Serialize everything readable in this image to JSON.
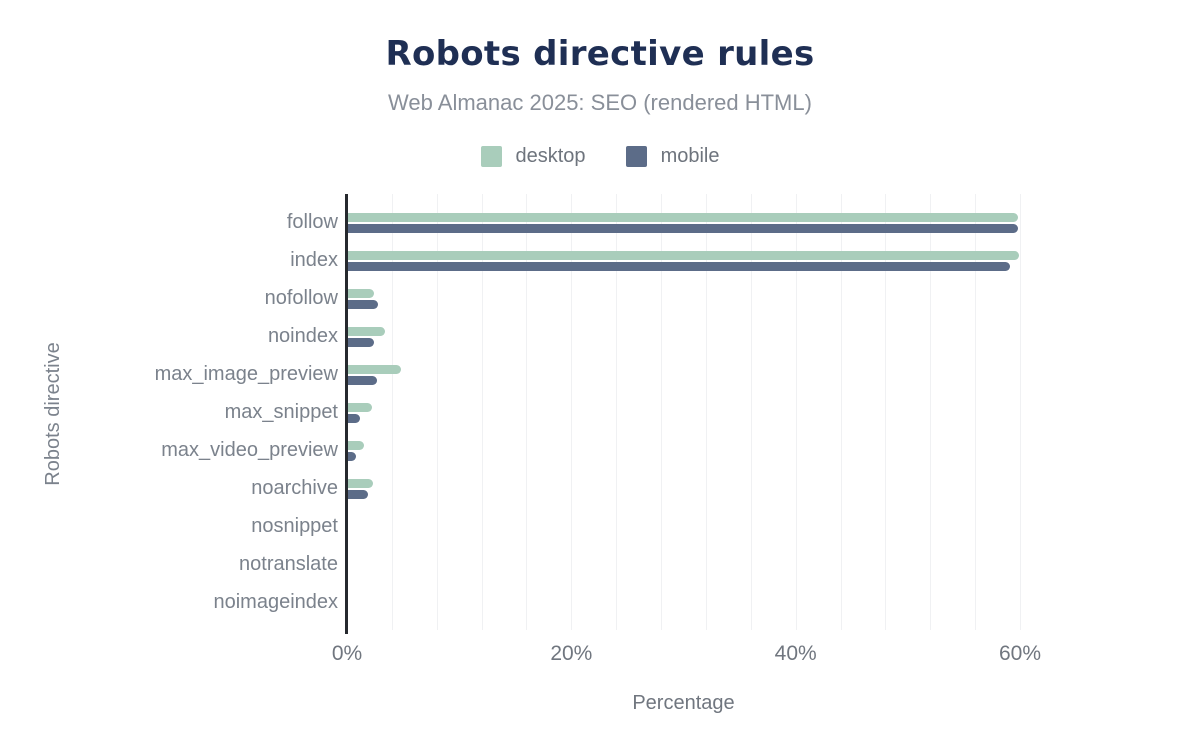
{
  "chart_data": {
    "type": "bar",
    "orientation": "horizontal",
    "title": "Robots directive rules",
    "subtitle": "Web Almanac 2025: SEO (rendered HTML)",
    "xlabel": "Percentage",
    "ylabel": "Robots directive",
    "xlim": [
      0,
      60
    ],
    "x_tick_labels": [
      {
        "value": 0,
        "label": "0%"
      },
      {
        "value": 20,
        "label": "20%"
      },
      {
        "value": 40,
        "label": "40%"
      },
      {
        "value": 60,
        "label": "60%"
      }
    ],
    "minor_gridline_step_percent": 4,
    "grid": true,
    "legend_position": "top",
    "categories": [
      "follow",
      "index",
      "nofollow",
      "noindex",
      "max_image_preview",
      "max_snippet",
      "max_video_preview",
      "noarchive",
      "nosnippet",
      "notranslate",
      "noimageindex"
    ],
    "series": [
      {
        "name": "desktop",
        "color": "#a9cdbb",
        "values": [
          59.8,
          59.9,
          2.4,
          3.4,
          4.8,
          2.2,
          1.5,
          2.3,
          0,
          0,
          0
        ]
      },
      {
        "name": "mobile",
        "color": "#5c6c88",
        "values": [
          59.8,
          59.1,
          2.8,
          2.4,
          2.7,
          1.2,
          0.8,
          1.9,
          0,
          0,
          0
        ]
      }
    ]
  },
  "colors": {
    "title": "#1f2f54",
    "subtitle": "#898f99",
    "axis_line": "#26292e",
    "gridline": "#f0f1f3",
    "tick_label": "#70767f",
    "category_label": "#7b828c"
  }
}
